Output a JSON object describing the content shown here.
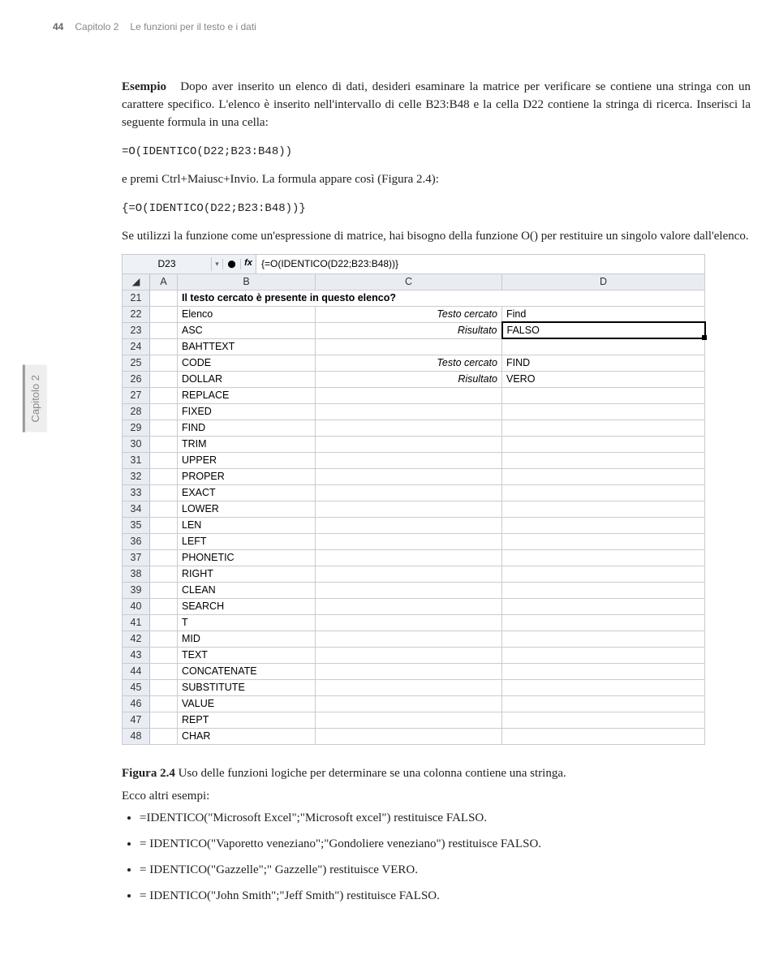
{
  "page": {
    "number": "44",
    "chapterRef": "Capitolo 2",
    "chapterTitle": "Le funzioni per il testo e i dati",
    "sidebar": "Capitolo 2"
  },
  "text": {
    "exampleLabel": "Esempio",
    "p1a": "Dopo aver inserito un elenco di dati, desideri esaminare la matrice per verificare se contiene una stringa con un carattere specifico. L'elenco è inserito nell'intervallo di celle B23:B48 e la cella D22 contiene la stringa di ricerca. Inserisci la seguente formula in una cella:",
    "formula1": "=O(IDENTICO(D22;B23:B48))",
    "p2": "e premi Ctrl+Maiusc+Invio. La formula appare così (Figura 2.4):",
    "formula2": "{=O(IDENTICO(D22;B23:B48))}",
    "p3": "Se utilizzi la funzione come un'espressione di matrice, hai bisogno della funzione O() per restituire un singolo valore dall'elenco.",
    "figLabel": "Figura 2.4",
    "figCaption": "Uso delle funzioni logiche per determinare se una colonna contiene una stringa.",
    "moreExamples": "Ecco altri esempi:",
    "b1": "=IDENTICO(\"Microsoft Excel\";\"Microsoft excel\") restituisce FALSO.",
    "b2": "= IDENTICO(\"Vaporetto veneziano\";\"Gondoliere veneziano\") restituisce FALSO.",
    "b3": "= IDENTICO(\"Gazzelle\";\" Gazzelle\") restituisce VERO.",
    "b4": "= IDENTICO(\"John Smith\";\"Jeff Smith\") restituisce FALSO."
  },
  "excel": {
    "nameBox": "D23",
    "fxGlyph": "fx",
    "formulaBar": "{=O(IDENTICO(D22;B23:B48))}",
    "cols": [
      "A",
      "B",
      "C",
      "D"
    ],
    "selected": {
      "row": 23,
      "col": "D"
    },
    "rows": [
      {
        "n": 21,
        "B": "Il testo cercato è presente in questo elenco?",
        "bold": true
      },
      {
        "n": 22,
        "B": "Elenco",
        "C": "Testo cercato",
        "D": "Find",
        "citalic": true
      },
      {
        "n": 23,
        "B": "ASC",
        "C": "Risultato",
        "D": "FALSO",
        "citalic": true
      },
      {
        "n": 24,
        "B": "BAHTTEXT"
      },
      {
        "n": 25,
        "B": "CODE",
        "C": "Testo cercato",
        "D": "FIND",
        "citalic": true
      },
      {
        "n": 26,
        "B": "DOLLAR",
        "C": "Risultato",
        "D": "VERO",
        "citalic": true
      },
      {
        "n": 27,
        "B": "REPLACE"
      },
      {
        "n": 28,
        "B": "FIXED"
      },
      {
        "n": 29,
        "B": "FIND"
      },
      {
        "n": 30,
        "B": "TRIM"
      },
      {
        "n": 31,
        "B": "UPPER"
      },
      {
        "n": 32,
        "B": "PROPER"
      },
      {
        "n": 33,
        "B": "EXACT"
      },
      {
        "n": 34,
        "B": "LOWER"
      },
      {
        "n": 35,
        "B": "LEN"
      },
      {
        "n": 36,
        "B": "LEFT"
      },
      {
        "n": 37,
        "B": "PHONETIC"
      },
      {
        "n": 38,
        "B": "RIGHT"
      },
      {
        "n": 39,
        "B": "CLEAN"
      },
      {
        "n": 40,
        "B": "SEARCH"
      },
      {
        "n": 41,
        "B": "T"
      },
      {
        "n": 42,
        "B": "MID"
      },
      {
        "n": 43,
        "B": "TEXT"
      },
      {
        "n": 44,
        "B": "CONCATENATE"
      },
      {
        "n": 45,
        "B": "SUBSTITUTE"
      },
      {
        "n": 46,
        "B": "VALUE"
      },
      {
        "n": 47,
        "B": "REPT"
      },
      {
        "n": 48,
        "B": "CHAR"
      }
    ]
  }
}
